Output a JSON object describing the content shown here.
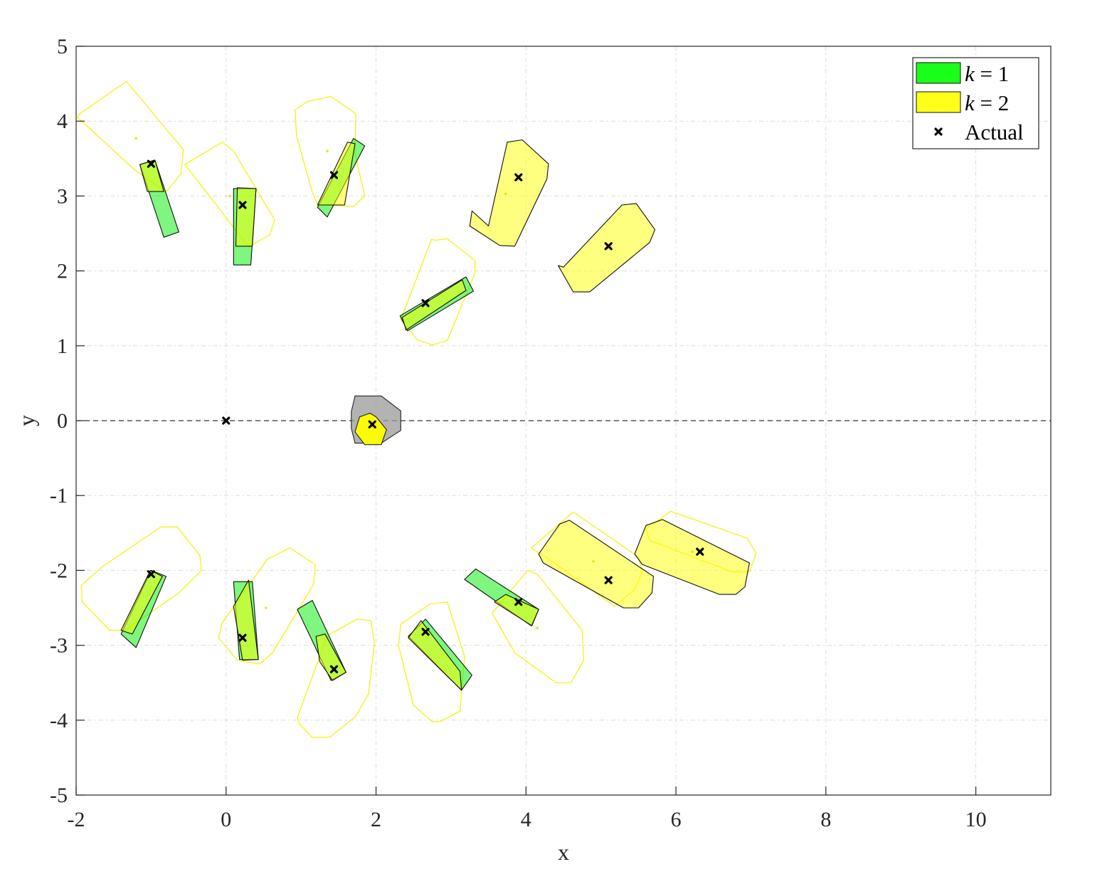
{
  "chart_data": {
    "type": "scatter",
    "xlabel": "x",
    "ylabel": "y",
    "xlim": [
      -2,
      11
    ],
    "ylim": [
      -5,
      5
    ],
    "xticks": [
      -2,
      0,
      2,
      4,
      6,
      8,
      10
    ],
    "yticks": [
      -5,
      -4,
      -3,
      -2,
      -1,
      0,
      1,
      2,
      3,
      4,
      5
    ],
    "grid": true,
    "legend_position": "top-right",
    "legend": [
      {
        "var": "k",
        "eq": " = 1",
        "color": "#00ff00"
      },
      {
        "var": "k",
        "eq": " = 2",
        "color": "#ffff00"
      },
      {
        "var": "",
        "eq": "Actual",
        "color": "#000000"
      }
    ],
    "reference_line": {
      "y": 0,
      "style": "dashed"
    },
    "actual_points": [
      {
        "x": 0,
        "y": 0
      },
      {
        "x": 1.95,
        "y": -0.05
      },
      {
        "x": -1.0,
        "y": 3.43
      },
      {
        "x": 0.22,
        "y": 2.88
      },
      {
        "x": 1.44,
        "y": 3.28
      },
      {
        "x": 3.9,
        "y": 3.25
      },
      {
        "x": 5.1,
        "y": 2.33
      },
      {
        "x": 2.66,
        "y": 1.57
      },
      {
        "x": -1.0,
        "y": -2.05
      },
      {
        "x": 0.22,
        "y": -2.9
      },
      {
        "x": 1.44,
        "y": -3.32
      },
      {
        "x": 2.66,
        "y": -2.82
      },
      {
        "x": 3.9,
        "y": -2.42
      },
      {
        "x": 5.1,
        "y": -2.13
      },
      {
        "x": 6.32,
        "y": -1.75
      }
    ],
    "prediction_points": [
      {
        "x": -1.2,
        "y": 3.77
      },
      {
        "x": 0.05,
        "y": 3.0
      },
      {
        "x": 1.35,
        "y": 3.6
      },
      {
        "x": 3.73,
        "y": 3.03
      },
      {
        "x": 0.53,
        "y": -2.5
      },
      {
        "x": 4.9,
        "y": -1.88
      },
      {
        "x": 4.15,
        "y": -2.77
      },
      {
        "x": 6.22,
        "y": -1.75
      }
    ],
    "ego_regions": [
      {
        "color": "#999999",
        "points": [
          [
            1.72,
            0.33
          ],
          [
            2.07,
            0.33
          ],
          [
            2.33,
            0.13
          ],
          [
            2.33,
            -0.13
          ],
          [
            2.07,
            -0.3
          ],
          [
            1.72,
            -0.3
          ],
          [
            1.67,
            -0.1
          ],
          [
            1.67,
            0.12
          ]
        ]
      },
      {
        "color": "#ffff00",
        "points": [
          [
            1.78,
            0.05
          ],
          [
            1.92,
            0.1
          ],
          [
            2.0,
            0.05
          ],
          [
            2.14,
            -0.12
          ],
          [
            2.07,
            -0.32
          ],
          [
            1.85,
            -0.32
          ],
          [
            1.72,
            -0.15
          ]
        ]
      }
    ],
    "k1_regions": [
      {
        "points": [
          [
            -1.15,
            3.42
          ],
          [
            -0.95,
            3.48
          ],
          [
            -0.63,
            2.52
          ],
          [
            -0.83,
            2.45
          ]
        ]
      },
      {
        "points": [
          [
            0.1,
            3.1
          ],
          [
            0.4,
            3.1
          ],
          [
            0.33,
            2.08
          ],
          [
            0.1,
            2.08
          ]
        ]
      },
      {
        "points": [
          [
            1.22,
            2.85
          ],
          [
            1.7,
            3.77
          ],
          [
            1.85,
            3.67
          ],
          [
            1.35,
            2.72
          ]
        ]
      },
      {
        "points": [
          [
            2.32,
            1.4
          ],
          [
            3.2,
            1.92
          ],
          [
            3.3,
            1.73
          ],
          [
            2.42,
            1.2
          ]
        ]
      },
      {
        "points": [
          [
            -1.4,
            -2.85
          ],
          [
            -1.0,
            -2.0
          ],
          [
            -0.8,
            -2.08
          ],
          [
            -1.2,
            -3.03
          ]
        ]
      },
      {
        "points": [
          [
            0.1,
            -2.15
          ],
          [
            0.35,
            -2.15
          ],
          [
            0.43,
            -3.19
          ],
          [
            0.18,
            -3.19
          ]
        ]
      },
      {
        "points": [
          [
            0.95,
            -2.52
          ],
          [
            1.15,
            -2.4
          ],
          [
            1.6,
            -3.36
          ],
          [
            1.4,
            -3.47
          ]
        ]
      },
      {
        "points": [
          [
            2.43,
            -2.88
          ],
          [
            2.66,
            -2.65
          ],
          [
            3.28,
            -3.4
          ],
          [
            3.14,
            -3.6
          ]
        ]
      },
      {
        "points": [
          [
            3.18,
            -2.12
          ],
          [
            3.33,
            -1.98
          ],
          [
            4.17,
            -2.52
          ],
          [
            4.07,
            -2.74
          ]
        ]
      }
    ],
    "k2_filled_regions": [
      {
        "points": [
          [
            -1.15,
            3.42
          ],
          [
            -0.95,
            3.48
          ],
          [
            -0.83,
            3.06
          ],
          [
            -1.05,
            3.06
          ]
        ]
      },
      {
        "points": [
          [
            0.15,
            3.11
          ],
          [
            0.4,
            3.1
          ],
          [
            0.35,
            2.33
          ],
          [
            0.13,
            2.33
          ]
        ]
      },
      {
        "points": [
          [
            1.22,
            2.88
          ],
          [
            1.58,
            2.88
          ],
          [
            1.72,
            3.7
          ],
          [
            1.62,
            3.72
          ]
        ]
      },
      {
        "points": [
          [
            2.4,
            1.21
          ],
          [
            3.2,
            1.74
          ],
          [
            3.15,
            1.88
          ],
          [
            2.35,
            1.38
          ]
        ]
      },
      {
        "points": [
          [
            3.5,
            2.6
          ],
          [
            3.75,
            3.72
          ],
          [
            3.95,
            3.75
          ],
          [
            4.3,
            3.43
          ],
          [
            4.28,
            3.23
          ],
          [
            3.85,
            2.33
          ],
          [
            3.65,
            2.34
          ],
          [
            3.25,
            2.6
          ],
          [
            3.28,
            2.8
          ]
        ]
      },
      {
        "points": [
          [
            4.5,
            2.05
          ],
          [
            5.28,
            2.88
          ],
          [
            5.47,
            2.9
          ],
          [
            5.72,
            2.55
          ],
          [
            5.65,
            2.38
          ],
          [
            4.85,
            1.72
          ],
          [
            4.63,
            1.72
          ],
          [
            4.43,
            2.07
          ]
        ]
      },
      {
        "points": [
          [
            -1.4,
            -2.8
          ],
          [
            -1.01,
            -2.0
          ],
          [
            -0.85,
            -2.08
          ],
          [
            -1.25,
            -2.85
          ]
        ]
      },
      {
        "points": [
          [
            0.1,
            -2.48
          ],
          [
            0.3,
            -2.13
          ],
          [
            0.43,
            -3.19
          ],
          [
            0.22,
            -3.2
          ]
        ]
      },
      {
        "points": [
          [
            1.2,
            -2.88
          ],
          [
            1.32,
            -2.85
          ],
          [
            1.6,
            -3.36
          ],
          [
            1.42,
            -3.47
          ],
          [
            1.25,
            -3.22
          ]
        ]
      },
      {
        "points": [
          [
            2.43,
            -2.9
          ],
          [
            2.6,
            -2.67
          ],
          [
            3.12,
            -3.35
          ],
          [
            3.14,
            -3.6
          ]
        ]
      },
      {
        "points": [
          [
            3.58,
            -2.42
          ],
          [
            3.73,
            -2.32
          ],
          [
            4.17,
            -2.52
          ],
          [
            4.08,
            -2.74
          ]
        ]
      },
      {
        "points": [
          [
            4.17,
            -1.78
          ],
          [
            4.45,
            -1.38
          ],
          [
            4.58,
            -1.33
          ],
          [
            5.7,
            -2.08
          ],
          [
            5.68,
            -2.3
          ],
          [
            5.5,
            -2.5
          ],
          [
            5.3,
            -2.5
          ],
          [
            4.23,
            -1.9
          ]
        ]
      },
      {
        "points": [
          [
            5.45,
            -1.78
          ],
          [
            5.6,
            -1.4
          ],
          [
            5.82,
            -1.32
          ],
          [
            6.98,
            -1.9
          ],
          [
            6.92,
            -2.22
          ],
          [
            6.8,
            -2.32
          ],
          [
            6.58,
            -2.32
          ],
          [
            5.55,
            -1.92
          ]
        ]
      }
    ],
    "k2_outline_regions": [
      {
        "points": [
          [
            -1.95,
            4.1
          ],
          [
            -1.33,
            4.53
          ],
          [
            -0.57,
            3.62
          ],
          [
            -0.6,
            3.3
          ],
          [
            -0.8,
            3.05
          ],
          [
            -1.22,
            3.35
          ],
          [
            -1.98,
            4.05
          ]
        ]
      },
      {
        "points": [
          [
            -0.55,
            3.42
          ],
          [
            -0.05,
            3.72
          ],
          [
            0.1,
            3.6
          ],
          [
            0.65,
            2.68
          ],
          [
            0.58,
            2.48
          ],
          [
            0.3,
            2.32
          ],
          [
            -0.3,
            3.1
          ]
        ]
      },
      {
        "points": [
          [
            0.92,
            4.15
          ],
          [
            1.08,
            4.26
          ],
          [
            1.4,
            4.33
          ],
          [
            1.73,
            4.1
          ],
          [
            1.72,
            3.57
          ],
          [
            1.85,
            3.0
          ],
          [
            1.7,
            2.86
          ],
          [
            1.22,
            2.89
          ],
          [
            1.15,
            3.05
          ],
          [
            0.94,
            3.8
          ]
        ]
      },
      {
        "points": [
          [
            2.8,
            2.41
          ],
          [
            2.95,
            2.43
          ],
          [
            3.32,
            2.14
          ],
          [
            3.32,
            1.97
          ],
          [
            2.95,
            1.07
          ],
          [
            2.75,
            1.01
          ],
          [
            2.55,
            1.08
          ],
          [
            2.33,
            1.35
          ],
          [
            2.74,
            2.42
          ]
        ]
      },
      {
        "points": [
          [
            -1.93,
            -2.2
          ],
          [
            -1.65,
            -1.95
          ],
          [
            -0.87,
            -1.42
          ],
          [
            -0.65,
            -1.42
          ],
          [
            -0.35,
            -1.8
          ],
          [
            -0.33,
            -2.0
          ],
          [
            -0.63,
            -2.3
          ],
          [
            -1.35,
            -2.8
          ],
          [
            -1.55,
            -2.8
          ],
          [
            -1.92,
            -2.42
          ]
        ]
      },
      {
        "points": [
          [
            -0.1,
            -2.9
          ],
          [
            0.15,
            -3.2
          ],
          [
            0.45,
            -3.25
          ],
          [
            0.62,
            -3.1
          ],
          [
            1.17,
            -2.18
          ],
          [
            1.19,
            -1.92
          ],
          [
            0.85,
            -1.7
          ],
          [
            0.55,
            -1.85
          ],
          [
            -0.05,
            -2.7
          ]
        ]
      },
      {
        "points": [
          [
            0.95,
            -3.97
          ],
          [
            1.35,
            -2.87
          ],
          [
            1.75,
            -2.65
          ],
          [
            1.93,
            -2.67
          ],
          [
            1.98,
            -2.98
          ],
          [
            1.9,
            -3.65
          ],
          [
            1.73,
            -3.95
          ],
          [
            1.38,
            -4.23
          ],
          [
            1.15,
            -4.23
          ],
          [
            0.98,
            -4.05
          ]
        ]
      },
      {
        "points": [
          [
            2.33,
            -2.72
          ],
          [
            2.72,
            -2.45
          ],
          [
            2.95,
            -2.42
          ],
          [
            3.18,
            -3.15
          ],
          [
            3.12,
            -3.88
          ],
          [
            2.85,
            -4.02
          ],
          [
            2.75,
            -4.02
          ],
          [
            2.5,
            -3.8
          ],
          [
            2.3,
            -3.0
          ]
        ]
      },
      {
        "points": [
          [
            3.55,
            -2.57
          ],
          [
            4.02,
            -2.0
          ],
          [
            4.15,
            -2.05
          ],
          [
            4.75,
            -2.8
          ],
          [
            4.77,
            -3.2
          ],
          [
            4.6,
            -3.5
          ],
          [
            4.4,
            -3.5
          ],
          [
            3.85,
            -3.1
          ]
        ]
      },
      {
        "points": [
          [
            4.07,
            -1.7
          ],
          [
            4.63,
            -1.22
          ],
          [
            5.5,
            -1.82
          ],
          [
            5.55,
            -2.02
          ],
          [
            5.45,
            -2.25
          ],
          [
            5.18,
            -2.48
          ],
          [
            4.35,
            -1.88
          ]
        ]
      },
      {
        "points": [
          [
            5.6,
            -1.45
          ],
          [
            5.93,
            -1.21
          ],
          [
            6.95,
            -1.57
          ],
          [
            7.07,
            -1.77
          ],
          [
            6.98,
            -2.02
          ],
          [
            6.75,
            -2.02
          ],
          [
            5.65,
            -1.6
          ]
        ]
      }
    ]
  }
}
